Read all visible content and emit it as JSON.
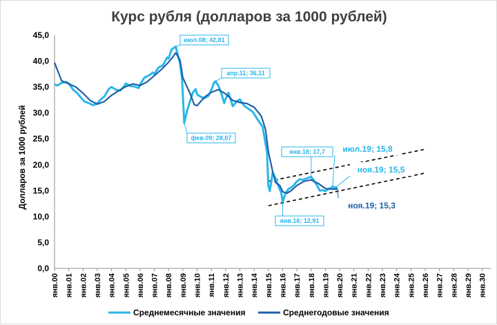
{
  "chart_data": {
    "type": "line",
    "title": "Курс рубля (долларов за 1000 рублей)",
    "ylabel": "Долларов за 1000 рублей",
    "xlabel": "",
    "ylim": [
      0,
      45
    ],
    "yticks": [
      "0,0",
      "5,0",
      "10,0",
      "15,0",
      "20,0",
      "25,0",
      "30,0",
      "35,0",
      "40,0",
      "45,0"
    ],
    "xlim": [
      2000,
      2030.6
    ],
    "xticks": [
      "янв.00",
      "янв.01",
      "янв.02",
      "янв.03",
      "янв.04",
      "янв.05",
      "янв.06",
      "янв.07",
      "янв.08",
      "янв.09",
      "янв.10",
      "янв.11",
      "янв.12",
      "янв.13",
      "янв.14",
      "янв.15",
      "янв.16",
      "янв.17",
      "янв.18",
      "янв.19",
      "янв.20",
      "янв.21",
      "янв.22",
      "янв.23",
      "янв.24",
      "янв.25",
      "янв.26",
      "янв.27",
      "янв.28",
      "янв.29",
      "янв.30"
    ],
    "grid": false,
    "legend_position": "bottom",
    "colors": {
      "monthly": "#29b6e9",
      "annual": "#1f5fa8",
      "trend": "#000000"
    },
    "series": [
      {
        "name": "Среднемесячные значения",
        "x": [
          2000.0,
          2000.2,
          2000.5,
          2000.8,
          2001.0,
          2001.3,
          2001.6,
          2001.9,
          2002.1,
          2002.4,
          2002.7,
          2003.0,
          2003.2,
          2003.5,
          2003.8,
          2004.0,
          2004.3,
          2004.6,
          2004.9,
          2005.0,
          2005.3,
          2005.6,
          2005.9,
          2006.0,
          2006.3,
          2006.6,
          2006.9,
          2007.0,
          2007.3,
          2007.6,
          2007.9,
          2008.0,
          2008.2,
          2008.5,
          2008.8,
          2008.95,
          2009.1,
          2009.3,
          2009.5,
          2009.7,
          2009.9,
          2010.0,
          2010.2,
          2010.5,
          2010.8,
          2011.0,
          2011.2,
          2011.3,
          2011.5,
          2011.7,
          2011.9,
          2012.0,
          2012.2,
          2012.5,
          2012.8,
          2013.0,
          2013.3,
          2013.6,
          2013.9,
          2014.0,
          2014.3,
          2014.6,
          2014.9,
          2015.0,
          2015.1,
          2015.3,
          2015.5,
          2015.7,
          2015.9,
          2016.0,
          2016.2,
          2016.4,
          2016.6,
          2016.8,
          2017.0,
          2017.2,
          2017.4,
          2017.6,
          2017.8,
          2018.0,
          2018.2,
          2018.4,
          2018.6,
          2018.8,
          2019.0,
          2019.2,
          2019.4,
          2019.5,
          2019.7,
          2019.85
        ],
        "y": [
          35.5,
          35.3,
          35.8,
          36.0,
          35.7,
          34.5,
          33.8,
          32.8,
          32.2,
          31.9,
          31.5,
          31.8,
          32.5,
          33.2,
          34.6,
          35.0,
          34.5,
          34.3,
          35.2,
          35.7,
          35.2,
          35.1,
          34.8,
          35.5,
          36.8,
          37.2,
          37.8,
          37.5,
          38.8,
          39.2,
          40.7,
          40.5,
          42.2,
          42.81,
          39.5,
          36.4,
          28.07,
          30.5,
          32.2,
          33.9,
          34.6,
          33.6,
          33.2,
          32.8,
          33.3,
          34.5,
          35.9,
          36.11,
          35.2,
          33.8,
          31.9,
          32.7,
          33.9,
          31.3,
          32.3,
          32.6,
          31.4,
          30.8,
          30.2,
          29.8,
          28.5,
          27.3,
          22.5,
          16.0,
          14.9,
          18.5,
          17.4,
          15.9,
          14.6,
          12.91,
          14.5,
          15.3,
          15.6,
          16.1,
          16.8,
          17.2,
          17.1,
          17.3,
          17.5,
          17.7,
          16.9,
          16.1,
          15.0,
          15.1,
          14.9,
          15.3,
          15.5,
          15.8,
          15.6,
          15.5
        ]
      },
      {
        "name": "Среднегодовые значения",
        "x": [
          2000.0,
          2000.5,
          2001.0,
          2001.5,
          2002.0,
          2002.5,
          2003.0,
          2003.5,
          2004.0,
          2004.5,
          2005.0,
          2005.5,
          2006.0,
          2006.5,
          2007.0,
          2007.5,
          2008.0,
          2008.3,
          2008.5,
          2008.8,
          2009.0,
          2009.5,
          2009.8,
          2010.0,
          2010.5,
          2011.0,
          2011.5,
          2012.0,
          2012.5,
          2013.0,
          2013.5,
          2014.0,
          2014.5,
          2014.8,
          2015.0,
          2015.3,
          2015.5,
          2015.8,
          2016.0,
          2016.3,
          2016.6,
          2017.0,
          2017.5,
          2018.0,
          2018.5,
          2019.0,
          2019.5,
          2019.85
        ],
        "y": [
          39.7,
          36.2,
          35.6,
          35.0,
          33.8,
          32.4,
          31.7,
          32.2,
          33.4,
          34.3,
          35.1,
          35.6,
          35.3,
          36.0,
          37.2,
          38.4,
          39.8,
          40.8,
          41.6,
          40.2,
          36.8,
          33.8,
          31.6,
          31.4,
          33.0,
          34.0,
          34.5,
          33.7,
          32.4,
          32.0,
          31.8,
          31.1,
          29.4,
          26.8,
          22.5,
          18.7,
          16.6,
          16.0,
          14.8,
          14.5,
          15.0,
          16.0,
          16.8,
          17.1,
          16.4,
          15.4,
          15.3,
          15.3
        ]
      }
    ],
    "trend_lines": [
      {
        "x": [
          2015.0,
          2026.0
        ],
        "y": [
          16.8,
          23.0
        ]
      },
      {
        "x": [
          2015.0,
          2026.0
        ],
        "y": [
          12.1,
          18.4
        ]
      }
    ],
    "annotations": [
      {
        "text": "июл.08; 42,81",
        "style": "small-box",
        "color": "#29b6e9"
      },
      {
        "text": "апр.11; 36,11",
        "style": "small-box",
        "color": "#29b6e9"
      },
      {
        "text": "фев.09; 28,07",
        "style": "small-box",
        "color": "#29b6e9"
      },
      {
        "text": "янв.18;    17,7",
        "style": "small-box",
        "color": "#29b6e9"
      },
      {
        "text": "янв.16; 12,91",
        "style": "small-box",
        "color": "#29b6e9"
      },
      {
        "text": "июл.19;   15,8",
        "style": "big",
        "color": "#29b6e9"
      },
      {
        "text": "ноя.19;   15,5",
        "style": "big",
        "color": "#29b6e9"
      },
      {
        "text": "ноя.19;   15,3",
        "style": "big",
        "color": "#1f5fa8"
      }
    ]
  }
}
